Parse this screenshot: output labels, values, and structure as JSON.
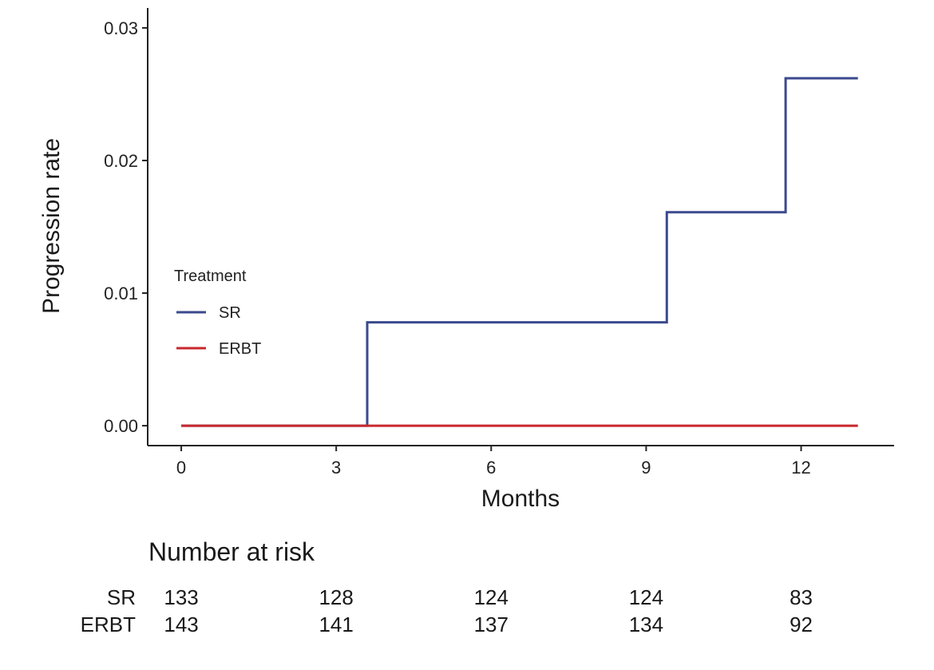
{
  "chart_data": {
    "type": "line",
    "step": true,
    "xlabel": "Months",
    "ylabel": "Progression rate",
    "xlim": [
      -0.65,
      13.8
    ],
    "ylim": [
      -0.0015,
      0.0315
    ],
    "xticks": [
      0,
      3,
      6,
      9,
      12
    ],
    "xtick_labels": [
      "0",
      "3",
      "6",
      "9",
      "12"
    ],
    "yticks": [
      0,
      0.01,
      0.02,
      0.03
    ],
    "ytick_labels": [
      "0.00",
      "0.01",
      "0.02",
      "0.03"
    ],
    "grid": false,
    "legend": {
      "title": "Treatment",
      "placement": "inside-left"
    },
    "series": [
      {
        "name": "SR",
        "color": "#3b4a8e",
        "x": [
          0,
          3.6,
          3.6,
          9.4,
          9.4,
          11.7,
          11.7,
          13.1
        ],
        "y": [
          0,
          0,
          0.0078,
          0.0078,
          0.0161,
          0.0161,
          0.0262,
          0.0262
        ]
      },
      {
        "name": "ERBT",
        "color": "#c8282d",
        "x": [
          0,
          13.1
        ],
        "y": [
          0,
          0
        ]
      }
    ],
    "risk_table": {
      "title": "Number at risk",
      "times": [
        0,
        3,
        6,
        9,
        12
      ],
      "rows": [
        {
          "label": "SR",
          "values": [
            "133",
            "128",
            "124",
            "124",
            "83"
          ]
        },
        {
          "label": "ERBT",
          "values": [
            "143",
            "141",
            "137",
            "134",
            "92"
          ]
        }
      ]
    }
  }
}
